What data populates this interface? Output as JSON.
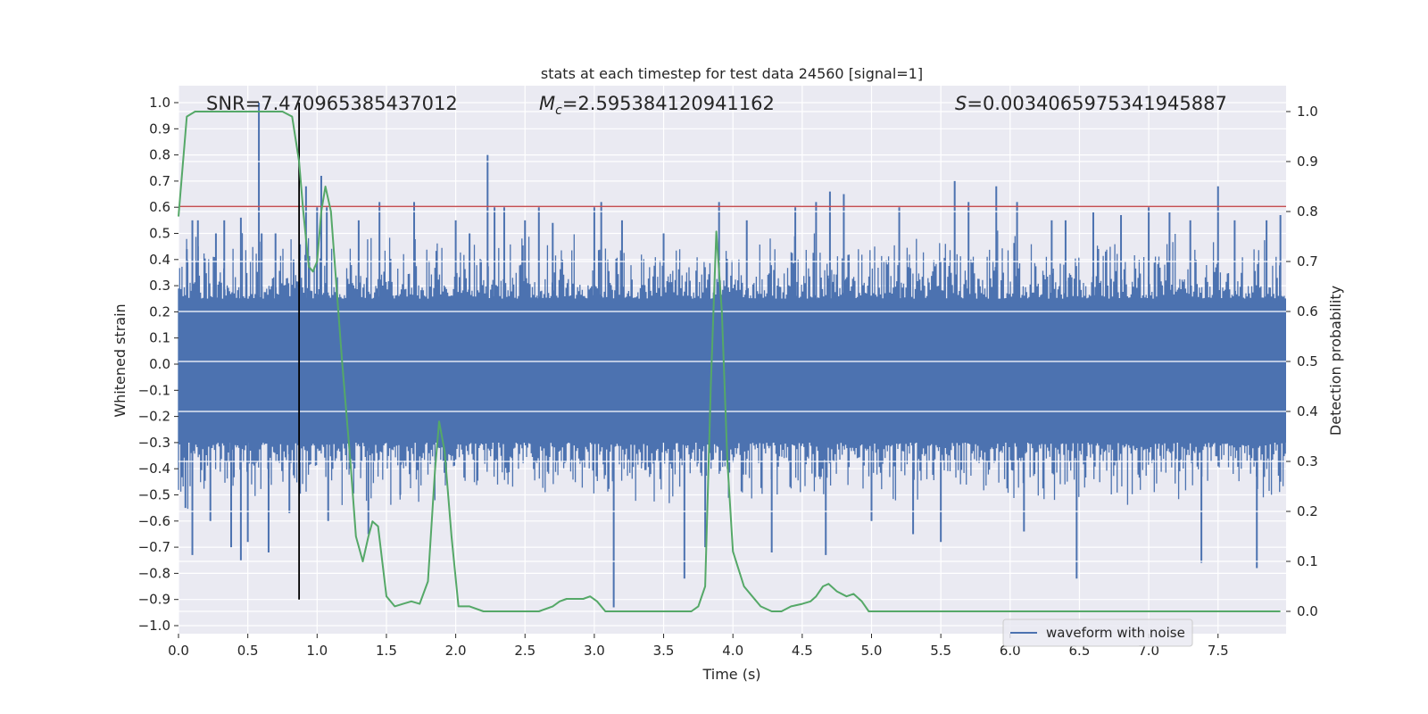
{
  "chart_data": {
    "type": "line",
    "title": "stats at each timestep for test data 24560 [signal=1]",
    "xlabel": "Time (s)",
    "ylabel_left": "Whitened strain",
    "ylabel_right": "Detection probability",
    "xlim": [
      0,
      8
    ],
    "ylim_left": [
      -1.0,
      1.0
    ],
    "ylim_right": [
      0.0,
      1.0
    ],
    "x_ticks": [
      "0.0",
      "0.5",
      "1.0",
      "1.5",
      "2.0",
      "2.5",
      "3.0",
      "3.5",
      "4.0",
      "4.5",
      "5.0",
      "5.5",
      "6.0",
      "6.5",
      "7.0",
      "7.5"
    ],
    "x_tick_values": [
      0,
      0.5,
      1,
      1.5,
      2,
      2.5,
      3,
      3.5,
      4,
      4.5,
      5,
      5.5,
      6,
      6.5,
      7,
      7.5
    ],
    "y_ticks_left": [
      "1.0",
      "0.9",
      "0.8",
      "0.7",
      "0.6",
      "0.5",
      "0.4",
      "0.3",
      "0.2",
      "0.1",
      "0.0",
      "−0.1",
      "−0.2",
      "−0.3",
      "−0.4",
      "−0.5",
      "−0.6",
      "−0.7",
      "−0.8",
      "−0.9",
      "−1.0"
    ],
    "y_tick_values_left": [
      1.0,
      0.9,
      0.8,
      0.7,
      0.6,
      0.5,
      0.4,
      0.3,
      0.2,
      0.1,
      0.0,
      -0.1,
      -0.2,
      -0.3,
      -0.4,
      -0.5,
      -0.6,
      -0.7,
      -0.8,
      -0.9,
      -1.0
    ],
    "y_ticks_right": [
      "1.0",
      "0.9",
      "0.8",
      "0.7",
      "0.6",
      "0.5",
      "0.4",
      "0.3",
      "0.2",
      "0.1",
      "0.0"
    ],
    "y_tick_values_right": [
      1.0,
      0.9,
      0.8,
      0.7,
      0.6,
      0.5,
      0.4,
      0.3,
      0.2,
      0.1,
      0.0
    ],
    "annotations": {
      "snr": "SNR=7.470965385437012",
      "mc_symbol": "M",
      "mc_sub": "c",
      "mc_value": "=2.595384120941162",
      "s_symbol": "S",
      "s_value": "=0.0034065975341945887"
    },
    "legend": {
      "label": "waveform with noise",
      "placement": "lower-right"
    },
    "threshold": {
      "value": 0.81,
      "color": "#c44e52"
    },
    "event_time": 0.87,
    "series": [
      {
        "name": "waveform with noise",
        "color": "#4c72b0",
        "axis": "left",
        "envelope": {
          "upper_typical": 0.25,
          "lower_typical": -0.3
        },
        "spikes": [
          [
            0.06,
            0.44
          ],
          [
            0.1,
            0.55
          ],
          [
            0.14,
            0.55
          ],
          [
            0.05,
            -0.55
          ],
          [
            0.1,
            -0.73
          ],
          [
            0.23,
            -0.6
          ],
          [
            0.27,
            0.5
          ],
          [
            0.33,
            0.55
          ],
          [
            0.38,
            -0.7
          ],
          [
            0.45,
            0.56
          ],
          [
            0.45,
            -0.75
          ],
          [
            0.5,
            -0.68
          ],
          [
            0.58,
            1.0
          ],
          [
            0.6,
            0.5
          ],
          [
            0.65,
            -0.72
          ],
          [
            0.7,
            0.5
          ],
          [
            0.8,
            -0.57
          ],
          [
            0.83,
            0.4
          ],
          [
            0.92,
            0.68
          ],
          [
            1.0,
            0.6
          ],
          [
            1.03,
            0.72
          ],
          [
            1.07,
            0.6
          ],
          [
            1.08,
            -0.6
          ],
          [
            1.3,
            0.55
          ],
          [
            1.37,
            -0.65
          ],
          [
            1.45,
            0.62
          ],
          [
            1.6,
            -0.5
          ],
          [
            1.7,
            0.62
          ],
          [
            2.0,
            0.55
          ],
          [
            2.1,
            0.5
          ],
          [
            2.23,
            0.8
          ],
          [
            2.28,
            0.6
          ],
          [
            2.35,
            0.6
          ],
          [
            2.5,
            0.55
          ],
          [
            2.6,
            0.6
          ],
          [
            2.7,
            0.54
          ],
          [
            3.0,
            0.6
          ],
          [
            3.05,
            0.62
          ],
          [
            3.14,
            -0.93
          ],
          [
            3.2,
            0.55
          ],
          [
            3.5,
            0.5
          ],
          [
            3.65,
            -0.82
          ],
          [
            3.8,
            -0.7
          ],
          [
            3.9,
            0.62
          ],
          [
            4.1,
            0.55
          ],
          [
            4.28,
            -0.72
          ],
          [
            4.45,
            0.6
          ],
          [
            4.6,
            0.62
          ],
          [
            4.67,
            -0.73
          ],
          [
            4.7,
            0.66
          ],
          [
            4.8,
            0.65
          ],
          [
            5.0,
            -0.6
          ],
          [
            5.2,
            0.6
          ],
          [
            5.3,
            -0.65
          ],
          [
            5.5,
            -0.68
          ],
          [
            5.6,
            0.7
          ],
          [
            5.7,
            0.62
          ],
          [
            5.9,
            0.68
          ],
          [
            6.05,
            0.62
          ],
          [
            6.1,
            -0.64
          ],
          [
            6.3,
            0.55
          ],
          [
            6.4,
            0.55
          ],
          [
            6.48,
            -0.82
          ],
          [
            6.6,
            0.58
          ],
          [
            6.8,
            0.57
          ],
          [
            7.0,
            0.6
          ],
          [
            7.15,
            0.58
          ],
          [
            7.3,
            0.55
          ],
          [
            7.38,
            -0.76
          ],
          [
            7.5,
            0.68
          ],
          [
            7.62,
            0.55
          ],
          [
            7.78,
            -0.78
          ],
          [
            7.85,
            0.55
          ],
          [
            7.95,
            0.57
          ]
        ]
      },
      {
        "name": "",
        "color": "#55a868",
        "axis": "right",
        "x": [
          0.0,
          0.06,
          0.12,
          0.2,
          0.3,
          0.4,
          0.5,
          0.6,
          0.7,
          0.75,
          0.82,
          0.87,
          0.9,
          0.94,
          0.97,
          1.0,
          1.03,
          1.06,
          1.1,
          1.14,
          1.18,
          1.24,
          1.28,
          1.33,
          1.37,
          1.4,
          1.44,
          1.5,
          1.56,
          1.62,
          1.68,
          1.74,
          1.8,
          1.85,
          1.88,
          1.92,
          1.97,
          2.02,
          2.1,
          2.2,
          2.3,
          2.5,
          2.6,
          2.7,
          2.75,
          2.8,
          2.87,
          2.92,
          2.97,
          3.02,
          3.08,
          3.14,
          3.3,
          3.45,
          3.6,
          3.7,
          3.75,
          3.8,
          3.84,
          3.88,
          3.92,
          3.96,
          4.0,
          4.08,
          4.14,
          4.2,
          4.28,
          4.35,
          4.42,
          4.5,
          4.56,
          4.6,
          4.65,
          4.69,
          4.75,
          4.82,
          4.87,
          4.93,
          4.98,
          5.05,
          5.3,
          5.5,
          5.8,
          6.0,
          6.2,
          6.5,
          6.8,
          7.0,
          7.2,
          7.5,
          7.8,
          7.95
        ],
        "y": [
          0.79,
          0.99,
          1.0,
          1.0,
          1.0,
          1.0,
          1.0,
          1.0,
          1.0,
          1.0,
          0.99,
          0.9,
          0.8,
          0.69,
          0.68,
          0.7,
          0.8,
          0.85,
          0.8,
          0.65,
          0.5,
          0.3,
          0.15,
          0.1,
          0.15,
          0.18,
          0.17,
          0.03,
          0.01,
          0.015,
          0.02,
          0.015,
          0.06,
          0.28,
          0.38,
          0.32,
          0.15,
          0.01,
          0.01,
          0.0,
          0.0,
          0.0,
          0.0,
          0.01,
          0.02,
          0.025,
          0.025,
          0.025,
          0.03,
          0.02,
          0.0,
          0.0,
          0.0,
          0.0,
          0.0,
          0.0,
          0.01,
          0.05,
          0.45,
          0.76,
          0.6,
          0.3,
          0.12,
          0.05,
          0.03,
          0.01,
          0.0,
          0.0,
          0.01,
          0.015,
          0.02,
          0.03,
          0.05,
          0.055,
          0.04,
          0.03,
          0.035,
          0.02,
          0.0,
          0.0,
          0.0,
          0.0,
          0.0,
          0.0,
          0.0,
          0.0,
          0.0,
          0.0,
          0.0,
          0.0,
          0.0,
          0.0
        ]
      }
    ],
    "grid": true
  }
}
